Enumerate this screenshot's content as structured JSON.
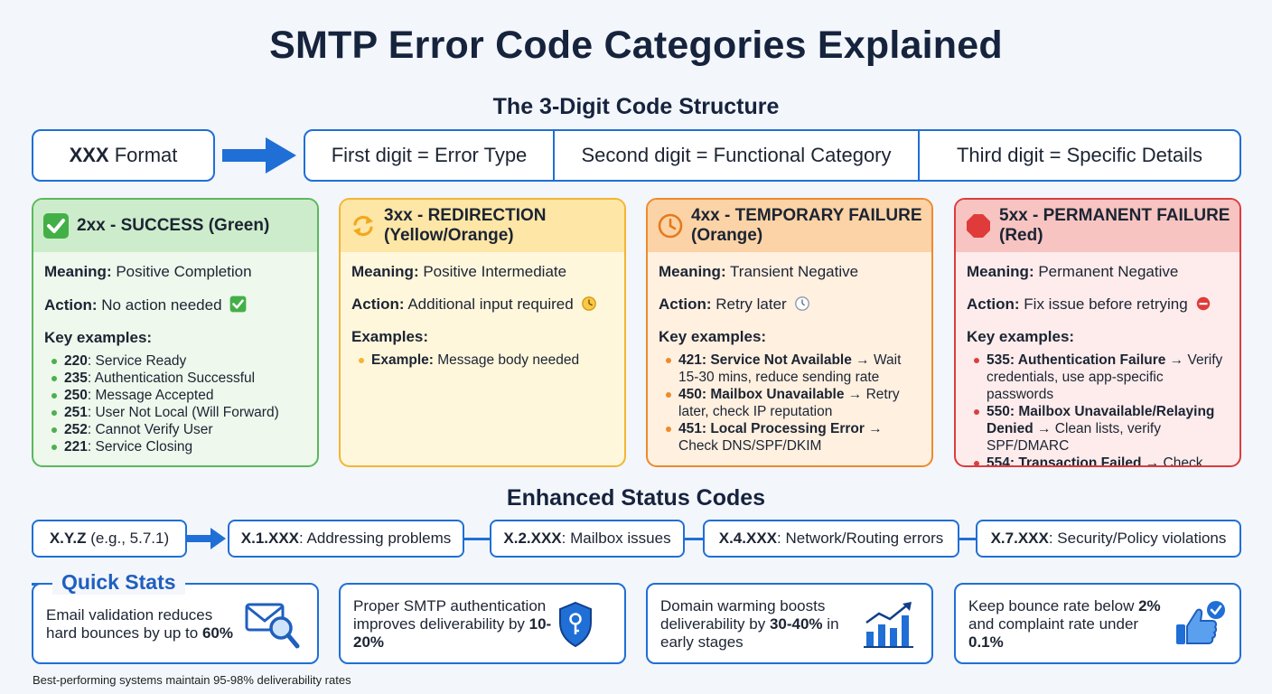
{
  "title": "SMTP Error Code Categories Explained",
  "structure": {
    "heading": "The 3-Digit Code Structure",
    "format_label": "XXX",
    "format_suffix": " Format",
    "parts": [
      "First digit = Error Type",
      "Second digit = Functional Category",
      "Third digit = Specific Details"
    ]
  },
  "categories": [
    {
      "title": "2xx - SUCCESS (Green)",
      "icon": "check-icon",
      "meaning_label": "Meaning:",
      "meaning": "Positive Completion",
      "action_label": "Action:",
      "action": "No action needed",
      "examples_label": "Key examples:",
      "examples": [
        {
          "code": "220",
          "text": ": Service Ready"
        },
        {
          "code": "235",
          "text": ": Authentication Successful"
        },
        {
          "code": "250",
          "text": ": Message Accepted"
        },
        {
          "code": "251",
          "text": ": User Not Local (Will Forward)"
        },
        {
          "code": "252",
          "text": ": Cannot Verify User"
        },
        {
          "code": "221",
          "text": ": Service Closing"
        }
      ],
      "colors": {
        "border": "#5bb85c",
        "head": "#cdeccb",
        "body": "#eef8ec",
        "dot": "#4caf50"
      }
    },
    {
      "title": "3xx - REDIRECTION (Yellow/Orange)",
      "icon": "redirect-arrows-icon",
      "meaning_label": "Meaning:",
      "meaning": "Positive Intermediate",
      "action_label": "Action:",
      "action": "Additional input required",
      "examples_label": "Examples:",
      "examples": [
        {
          "code": "Example:",
          "text": " Message body needed"
        }
      ],
      "colors": {
        "border": "#f2b632",
        "head": "#fde6a6",
        "body": "#fff7dc",
        "dot": "#f2b632"
      }
    },
    {
      "title": "4xx - TEMPORARY FAILURE (Orange)",
      "icon": "clock-icon",
      "meaning_label": "Meaning:",
      "meaning": "Transient Negative",
      "action_label": "Action:",
      "action": "Retry later",
      "examples_label": "Key examples:",
      "examples": [
        {
          "code": "421: Service Not Available",
          "text": " → Wait 15-30 mins, reduce sending rate"
        },
        {
          "code": "450: Mailbox Unavailable",
          "text": " → Retry later, check IP reputation"
        },
        {
          "code": "451: Local Processing Error",
          "text": " → Check DNS/SPF/DKIM"
        }
      ],
      "colors": {
        "border": "#ee8a2c",
        "head": "#fcd3a6",
        "body": "#fff0e0",
        "dot": "#ee8a2c"
      }
    },
    {
      "title": "5xx - PERMANENT FAILURE (Red)",
      "icon": "stop-sign-icon",
      "meaning_label": "Meaning:",
      "meaning": "Permanent Negative",
      "action_label": "Action:",
      "action": "Fix issue before retrying",
      "examples_label": "Key examples:",
      "examples": [
        {
          "code": "535: Authentication Failure",
          "text": " → Verify credentials, use app-specific passwords"
        },
        {
          "code": "550: Mailbox Unavailable/Relaying Denied",
          "text": " → Clean lists, verify SPF/DMARC"
        },
        {
          "code": "554: Transaction Failed",
          "text": " → Check blocklists, warm up domain"
        }
      ],
      "colors": {
        "border": "#dc3c3c",
        "head": "#f7c4c1",
        "body": "#fdeceb",
        "dot": "#d84040"
      }
    }
  ],
  "enhanced": {
    "heading": "Enhanced Status Codes",
    "source": {
      "code": "X.Y.Z",
      "text": " (e.g., 5.7.1)"
    },
    "items": [
      {
        "code": "X.1.XXX",
        "text": ": Addressing problems"
      },
      {
        "code": "X.2.XXX",
        "text": ": Mailbox issues"
      },
      {
        "code": "X.4.XXX",
        "text": ": Network/Routing errors"
      },
      {
        "code": "X.7.XXX",
        "text": ": Security/Policy violations"
      }
    ]
  },
  "quick_stats": {
    "heading": "Quick Stats",
    "items": [
      {
        "pre": "Email validation reduces hard bounces by up to ",
        "b1": "60%",
        "mid": "",
        "b2": "",
        "post": "",
        "icon": "envelope-magnifier-icon"
      },
      {
        "pre": "Proper SMTP authentication improves deliverability by ",
        "b1": "10-20%",
        "mid": "",
        "b2": "",
        "post": "",
        "icon": "shield-key-icon"
      },
      {
        "pre": "Domain warming boosts deliverability by ",
        "b1": "30-40%",
        "mid": " in early stages",
        "b2": "",
        "post": "",
        "icon": "growth-chart-icon"
      },
      {
        "pre": "Keep bounce rate below ",
        "b1": "2%",
        "mid": " and complaint rate under ",
        "b2": "0.1%",
        "post": "",
        "icon": "thumbs-up-icon"
      }
    ],
    "footnote": "Best-performing systems maintain 95-98% deliverability rates"
  }
}
